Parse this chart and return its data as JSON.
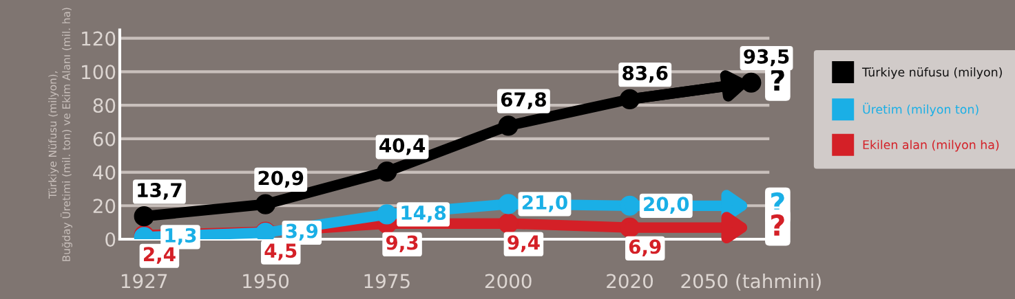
{
  "chart_data": {
    "type": "line",
    "ylabel": "Türkiye Nüfusu (milyon),\nBuğday Üretimi (mil. ton) ve Ekim Alanı (mil. ha)",
    "categories": [
      "1927",
      "1950",
      "1975",
      "2000",
      "2020",
      "2050 (tahmini)"
    ],
    "series": [
      {
        "name": "Türkiye nüfusu (milyon)",
        "color": "#000000",
        "values": [
          13.7,
          20.9,
          40.4,
          67.8,
          83.6,
          93.5
        ],
        "value_labels": [
          "13,7",
          "20,9",
          "40,4",
          "67,8",
          "83,6",
          "93,5"
        ]
      },
      {
        "name": "Üretim (milyon ton)",
        "color": "#1aafe6",
        "values": [
          1.3,
          3.9,
          14.8,
          21.0,
          20.0,
          null
        ],
        "value_labels": [
          "1,3",
          "3,9",
          "14,8",
          "21,0",
          "20,0",
          null
        ]
      },
      {
        "name": "Ekilen alan (milyon ha)",
        "color": "#d42027",
        "values": [
          2.4,
          4.5,
          9.3,
          9.4,
          6.9,
          null
        ],
        "value_labels": [
          "2,4",
          "4,5",
          "9,3",
          "9,4",
          "6,9",
          null
        ]
      }
    ],
    "annotations": [
      "?",
      "?",
      "?"
    ],
    "ylim": [
      0,
      125
    ],
    "yticks": [
      0,
      20,
      40,
      60,
      80,
      100,
      120
    ],
    "grid": "y",
    "legend": "right",
    "marker": "circle",
    "line_style": "solid"
  }
}
